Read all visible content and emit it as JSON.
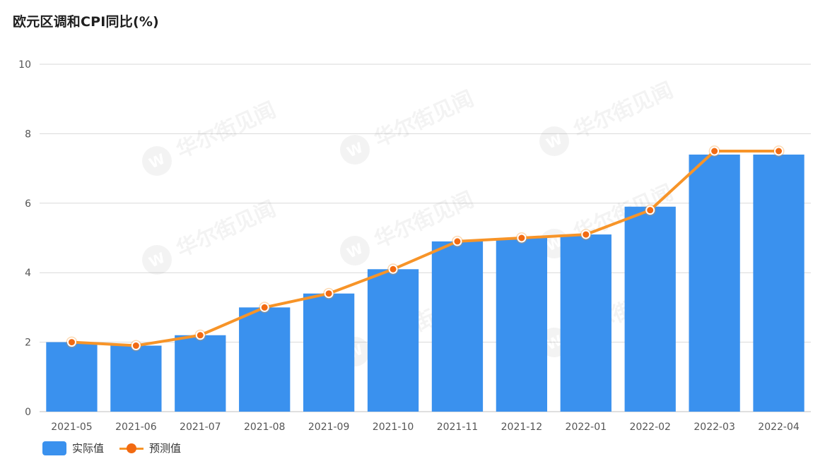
{
  "title": "欧元区调和CPI同比(%)",
  "watermark": "华尔街见闻",
  "legend": {
    "actual": "实际值",
    "forecast": "预测值"
  },
  "colors": {
    "bar": "#3a91ee",
    "line": "#f79428",
    "point": "#f26a11",
    "grid": "#d9d9d9",
    "axis_text": "#555555"
  },
  "chart_data": {
    "type": "bar",
    "categories": [
      "2021-05",
      "2021-06",
      "2021-07",
      "2021-08",
      "2021-09",
      "2021-10",
      "2021-11",
      "2021-12",
      "2022-01",
      "2022-02",
      "2022-03",
      "2022-04"
    ],
    "series": [
      {
        "name": "实际值",
        "type": "bar",
        "values": [
          2.0,
          1.9,
          2.2,
          3.0,
          3.4,
          4.1,
          4.9,
          5.0,
          5.1,
          5.9,
          7.4,
          7.4
        ]
      },
      {
        "name": "预测值",
        "type": "line",
        "values": [
          2.0,
          1.9,
          2.2,
          3.0,
          3.4,
          4.1,
          4.9,
          5.0,
          5.1,
          5.8,
          7.5,
          7.5
        ]
      }
    ],
    "ylim": [
      0,
      10
    ],
    "yticks": [
      0,
      2,
      4,
      6,
      8,
      10
    ],
    "grid": true,
    "legend_position": "bottom-left"
  }
}
